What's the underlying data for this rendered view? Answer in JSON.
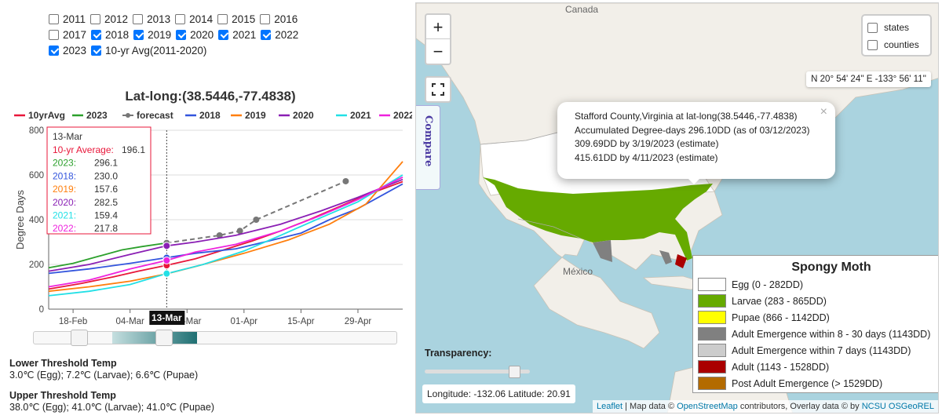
{
  "years": {
    "rows": [
      [
        {
          "label": "2011",
          "checked": false
        },
        {
          "label": "2012",
          "checked": false
        },
        {
          "label": "2013",
          "checked": false
        },
        {
          "label": "2014",
          "checked": false
        },
        {
          "label": "2015",
          "checked": false
        },
        {
          "label": "2016",
          "checked": false
        }
      ],
      [
        {
          "label": "2017",
          "checked": false
        },
        {
          "label": "2018",
          "checked": true
        },
        {
          "label": "2019",
          "checked": true
        },
        {
          "label": "2020",
          "checked": true
        },
        {
          "label": "2021",
          "checked": true
        },
        {
          "label": "2022",
          "checked": true
        }
      ],
      [
        {
          "label": "2023",
          "checked": true
        },
        {
          "label": "10-yr Avg(2011-2020)",
          "checked": true
        }
      ]
    ]
  },
  "chart_data": {
    "type": "line",
    "title": "Lat-long:(38.5446,-77.4838)",
    "ylabel": "Degree Days",
    "xlabel": "",
    "ylim": [
      0,
      800
    ],
    "yticks": [
      0,
      200,
      400,
      600,
      800
    ],
    "x_domain": [
      "2023-02-12",
      "2023-05-10"
    ],
    "xticks": [
      {
        "date": "2023-02-18",
        "label": "18-Feb"
      },
      {
        "date": "2023-03-04",
        "label": "04-Mar"
      },
      {
        "date": "2023-03-18",
        "label": "18-Mar"
      },
      {
        "date": "2023-04-01",
        "label": "01-Apr"
      },
      {
        "date": "2023-04-15",
        "label": "15-Apr"
      },
      {
        "date": "2023-04-29",
        "label": "29-Apr"
      }
    ],
    "grid": true,
    "legend_position": "top",
    "series": [
      {
        "name": "10yrAvg",
        "color": "#e8173a",
        "dashed": false,
        "points": [
          [
            "2023-02-12",
            90
          ],
          [
            "2023-02-20",
            115
          ],
          [
            "2023-02-28",
            145
          ],
          [
            "2023-03-06",
            170
          ],
          [
            "2023-03-13",
            196
          ],
          [
            "2023-03-20",
            225
          ],
          [
            "2023-03-27",
            265
          ],
          [
            "2023-04-03",
            305
          ],
          [
            "2023-04-10",
            350
          ],
          [
            "2023-04-17",
            400
          ],
          [
            "2023-04-24",
            455
          ],
          [
            "2023-05-01",
            510
          ],
          [
            "2023-05-10",
            570
          ]
        ]
      },
      {
        "name": "2023",
        "color": "#2ca02c",
        "dashed": false,
        "points": [
          [
            "2023-02-12",
            185
          ],
          [
            "2023-02-18",
            205
          ],
          [
            "2023-02-25",
            240
          ],
          [
            "2023-03-02",
            265
          ],
          [
            "2023-03-07",
            280
          ],
          [
            "2023-03-13",
            296
          ]
        ]
      },
      {
        "name": "forecast",
        "color": "#777777",
        "dashed": true,
        "markers": true,
        "points": [
          [
            "2023-03-13",
            296
          ],
          [
            "2023-03-26",
            330
          ],
          [
            "2023-03-31",
            350
          ],
          [
            "2023-04-04",
            400
          ],
          [
            "2023-04-26",
            572
          ]
        ]
      },
      {
        "name": "2018",
        "color": "#3355dd",
        "dashed": false,
        "points": [
          [
            "2023-02-12",
            160
          ],
          [
            "2023-02-22",
            180
          ],
          [
            "2023-03-04",
            205
          ],
          [
            "2023-03-13",
            230
          ],
          [
            "2023-03-20",
            250
          ],
          [
            "2023-03-30",
            270
          ],
          [
            "2023-04-06",
            300
          ],
          [
            "2023-04-15",
            340
          ],
          [
            "2023-04-22",
            400
          ],
          [
            "2023-04-29",
            450
          ],
          [
            "2023-05-06",
            520
          ],
          [
            "2023-05-10",
            560
          ]
        ]
      },
      {
        "name": "2019",
        "color": "#ff7f0e",
        "dashed": false,
        "points": [
          [
            "2023-02-12",
            80
          ],
          [
            "2023-02-22",
            100
          ],
          [
            "2023-03-04",
            125
          ],
          [
            "2023-03-13",
            158
          ],
          [
            "2023-03-20",
            190
          ],
          [
            "2023-04-01",
            250
          ],
          [
            "2023-04-12",
            310
          ],
          [
            "2023-04-22",
            380
          ],
          [
            "2023-05-01",
            470
          ],
          [
            "2023-05-10",
            660
          ]
        ]
      },
      {
        "name": "2020",
        "color": "#8a1fb4",
        "dashed": false,
        "points": [
          [
            "2023-02-12",
            170
          ],
          [
            "2023-02-22",
            200
          ],
          [
            "2023-03-04",
            245
          ],
          [
            "2023-03-13",
            283
          ],
          [
            "2023-03-20",
            300
          ],
          [
            "2023-03-30",
            330
          ],
          [
            "2023-04-10",
            380
          ],
          [
            "2023-04-20",
            440
          ],
          [
            "2023-04-29",
            500
          ],
          [
            "2023-05-10",
            580
          ]
        ]
      },
      {
        "name": "2021",
        "color": "#22e0e6",
        "dashed": false,
        "points": [
          [
            "2023-02-12",
            60
          ],
          [
            "2023-02-22",
            80
          ],
          [
            "2023-03-04",
            110
          ],
          [
            "2023-03-13",
            159
          ],
          [
            "2023-03-22",
            200
          ],
          [
            "2023-04-01",
            260
          ],
          [
            "2023-04-10",
            330
          ],
          [
            "2023-04-20",
            410
          ],
          [
            "2023-04-29",
            480
          ],
          [
            "2023-05-10",
            600
          ]
        ]
      },
      {
        "name": "2022",
        "color": "#ee22dd",
        "dashed": false,
        "points": [
          [
            "2023-02-12",
            100
          ],
          [
            "2023-02-22",
            130
          ],
          [
            "2023-03-04",
            180
          ],
          [
            "2023-03-13",
            218
          ],
          [
            "2023-03-20",
            255
          ],
          [
            "2023-03-30",
            290
          ],
          [
            "2023-04-10",
            350
          ],
          [
            "2023-04-20",
            420
          ],
          [
            "2023-04-29",
            490
          ],
          [
            "2023-05-10",
            590
          ]
        ]
      }
    ],
    "marker_date": "2023-03-13",
    "marker_label": "13-Mar"
  },
  "tooltip": {
    "date": "13-Mar",
    "rows": [
      {
        "label": "10-yr Average:",
        "value": "196.1",
        "color": "#e8173a"
      },
      {
        "label": "2023:",
        "value": "296.1",
        "color": "#2ca02c"
      },
      {
        "label": "2018:",
        "value": "230.0",
        "color": "#3355dd"
      },
      {
        "label": "2019:",
        "value": "157.6",
        "color": "#ff7f0e"
      },
      {
        "label": "2020:",
        "value": "282.5",
        "color": "#8a1fb4"
      },
      {
        "label": "2021:",
        "value": "159.4",
        "color": "#22e0e6"
      },
      {
        "label": "2022:",
        "value": "217.8",
        "color": "#ee22dd"
      }
    ]
  },
  "thresholds": {
    "lower_title": "Lower Threshold Temp",
    "lower_text": "3.0℃ (Egg); 7.2℃ (Larvae); 6.6℃ (Pupae)",
    "upper_title": "Upper Threshold Temp",
    "upper_text": "38.0℃ (Egg); 41.0℃ (Larvae); 41.0℃ (Pupae)"
  },
  "map": {
    "zoom_in": "+",
    "zoom_out": "−",
    "compare_label": "Compare",
    "layers": [
      {
        "label": "states",
        "checked": false
      },
      {
        "label": "counties",
        "checked": false
      }
    ],
    "coords_readout": "N 20° 54' 24'' E -133° 56' 11''",
    "labels": {
      "canada": "Canada",
      "mexico": "México"
    },
    "popup": {
      "line1": "Stafford County,Virginia at lat-long(38.5446,-77.4838)",
      "line2": "Accumulated Degree-days 296.10DD (as of 03/12/2023)",
      "line3": "309.69DD by 3/19/2023 (estimate)",
      "line4": "415.61DD by 4/11/2023 (estimate)",
      "close": "×"
    },
    "legend": {
      "title": "Spongy Moth",
      "items": [
        {
          "label": "Egg (0 - 282DD)",
          "color": "#ffffff"
        },
        {
          "label": "Larvae (283 - 865DD)",
          "color": "#66aa00"
        },
        {
          "label": "Pupae (866 - 1142DD)",
          "color": "#ffff00"
        },
        {
          "label": "Adult Emergence within 8 - 30 days (1143DD)",
          "color": "#808080"
        },
        {
          "label": "Adult Emergence within 7 days (1143DD)",
          "color": "#cccccc"
        },
        {
          "label": "Adult (1143 - 1528DD)",
          "color": "#aa0000"
        },
        {
          "label": "Post Adult Emergence (> 1529DD)",
          "color": "#b36b00"
        }
      ]
    },
    "transparency_label": "Transparency:",
    "transparency": 0.9,
    "lonlat": "Longitude: -132.06 Latitude: 20.91",
    "attribution": {
      "leaflet": "Leaflet",
      "map_data": " | Map data © ",
      "osm": "OpenStreetMap",
      "contrib": " contributors, Overlay data © by ",
      "ncsu": "NCSU OSGeoREL"
    }
  }
}
